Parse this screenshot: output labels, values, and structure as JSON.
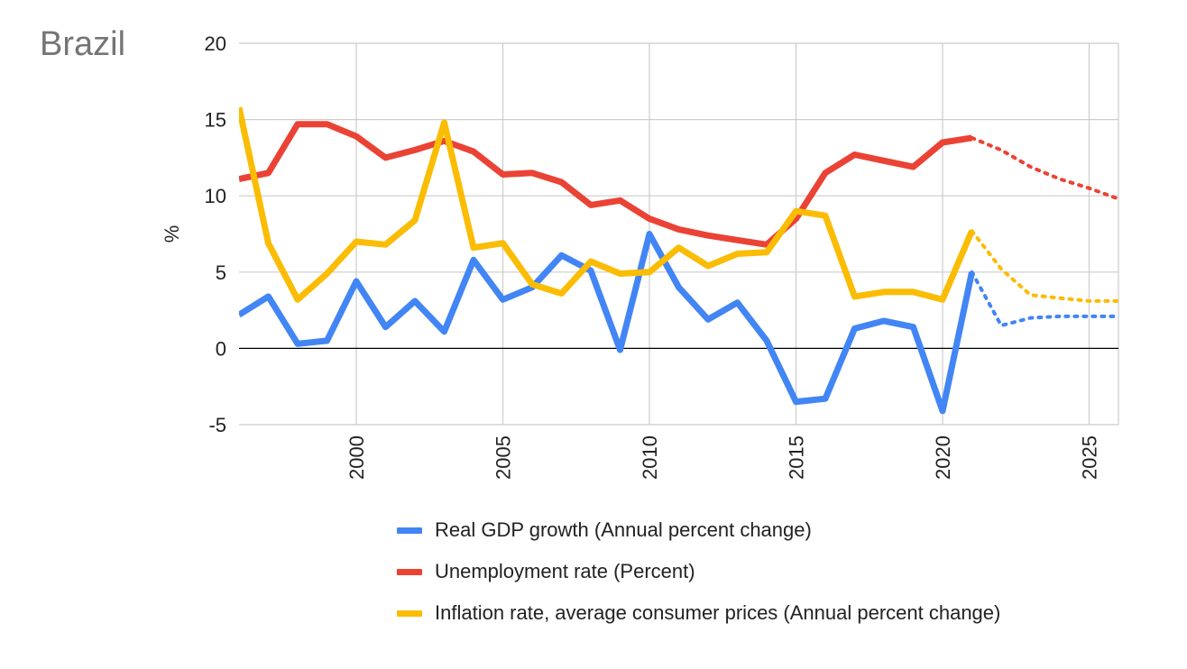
{
  "colors": {
    "gdp": "#4285f4",
    "unemployment": "#ea4335",
    "inflation": "#fbbc04",
    "grid": "#cccccc",
    "zero": "#000000",
    "title": "#757575"
  },
  "chart_data": {
    "type": "line",
    "title": "Brazil",
    "xlabel": "",
    "ylabel": "%",
    "xlim": [
      1996,
      2026
    ],
    "ylim": [
      -5,
      20
    ],
    "xticks": [
      2000,
      2005,
      2010,
      2015,
      2020,
      2025
    ],
    "yticks": [
      -5,
      0,
      5,
      10,
      15,
      20
    ],
    "grid": true,
    "legend_position": "bottom",
    "series": [
      {
        "name": "Real GDP growth (Annual percent change)",
        "color": "#4285f4",
        "x": [
          1996,
          1997,
          1998,
          1999,
          2000,
          2001,
          2002,
          2003,
          2004,
          2005,
          2006,
          2007,
          2008,
          2009,
          2010,
          2011,
          2012,
          2013,
          2014,
          2015,
          2016,
          2017,
          2018,
          2019,
          2020,
          2021
        ],
        "values": [
          2.2,
          3.4,
          0.3,
          0.5,
          4.4,
          1.4,
          3.1,
          1.1,
          5.8,
          3.2,
          4.0,
          6.1,
          5.1,
          -0.1,
          7.5,
          4.0,
          1.9,
          3.0,
          0.5,
          -3.5,
          -3.3,
          1.3,
          1.8,
          1.4,
          -4.1,
          5.0
        ],
        "projection": {
          "x": [
            2021,
            2022,
            2023,
            2024,
            2025,
            2026
          ],
          "values": [
            5.0,
            1.5,
            2.0,
            2.1,
            2.1,
            2.1
          ]
        }
      },
      {
        "name": "Unemployment rate (Percent)",
        "color": "#ea4335",
        "x": [
          1996,
          1997,
          1998,
          1999,
          2000,
          2001,
          2002,
          2003,
          2004,
          2005,
          2006,
          2007,
          2008,
          2009,
          2010,
          2011,
          2012,
          2013,
          2014,
          2015,
          2016,
          2017,
          2018,
          2019,
          2020,
          2021
        ],
        "values": [
          11.1,
          11.5,
          14.7,
          14.7,
          13.9,
          12.5,
          13.0,
          13.6,
          12.9,
          11.4,
          11.5,
          10.9,
          9.4,
          9.7,
          8.5,
          7.8,
          7.4,
          7.1,
          6.8,
          8.5,
          11.5,
          12.7,
          12.3,
          11.9,
          13.5,
          13.8
        ],
        "projection": {
          "x": [
            2021,
            2022,
            2023,
            2024,
            2025,
            2026
          ],
          "values": [
            13.8,
            13.0,
            11.9,
            11.1,
            10.5,
            9.8
          ]
        }
      },
      {
        "name": "Inflation rate, average consumer prices (Annual percent change)",
        "color": "#fbbc04",
        "x": [
          1996,
          1997,
          1998,
          1999,
          2000,
          2001,
          2002,
          2003,
          2004,
          2005,
          2006,
          2007,
          2008,
          2009,
          2010,
          2011,
          2012,
          2013,
          2014,
          2015,
          2016,
          2017,
          2018,
          2019,
          2020,
          2021
        ],
        "values": [
          15.8,
          6.9,
          3.2,
          4.9,
          7.0,
          6.8,
          8.4,
          14.8,
          6.6,
          6.9,
          4.2,
          3.6,
          5.7,
          4.9,
          5.0,
          6.6,
          5.4,
          6.2,
          6.3,
          9.0,
          8.7,
          3.4,
          3.7,
          3.7,
          3.2,
          7.7
        ],
        "projection": {
          "x": [
            2021,
            2022,
            2023,
            2024,
            2025,
            2026
          ],
          "values": [
            7.7,
            5.2,
            3.5,
            3.3,
            3.1,
            3.1
          ]
        }
      }
    ]
  }
}
